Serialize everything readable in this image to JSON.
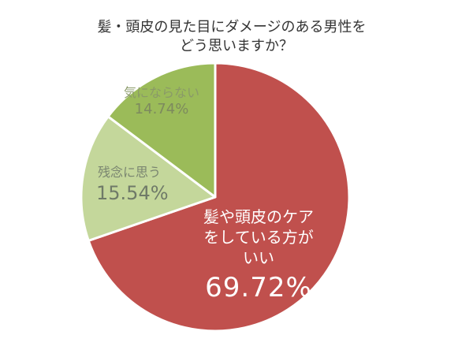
{
  "title": {
    "line1": "髪・頭皮の見た目にダメージのある男性を",
    "line2": "どう思いますか？"
  },
  "chart_data": {
    "type": "pie",
    "title": "髪・頭皮の見た目にダメージのある男性をどう思いますか？",
    "categories": [
      "髪や頭皮のケアをしている方がいい",
      "残念に思う",
      "気にならない"
    ],
    "values": [
      69.72,
      15.54,
      14.74
    ],
    "unit": "%",
    "colors": [
      "#c0504d",
      "#c4d79b",
      "#9bbb59"
    ],
    "start_angle": "12 o'clock, clockwise",
    "legend": "none (labels inside slices)"
  },
  "labels": {
    "care": {
      "line1": "髪や頭皮のケア",
      "line2": "をしている方が",
      "line3": "いい",
      "pct": "69.72%"
    },
    "zannen": {
      "name": "残念に思う",
      "pct": "15.54%"
    },
    "kininaranai": {
      "name": "気にならない",
      "pct": "14.74%"
    }
  }
}
